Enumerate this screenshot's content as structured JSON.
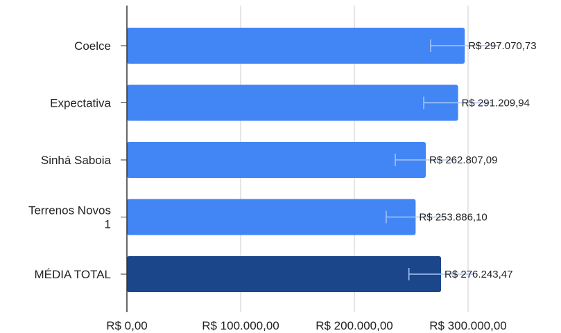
{
  "chart_data": {
    "type": "bar",
    "orientation": "horizontal",
    "title": "",
    "xlabel": "",
    "ylabel": "",
    "categories": [
      [
        "Coelce"
      ],
      [
        "Expectativa"
      ],
      [
        "Sinhá Saboia"
      ],
      [
        "Terrenos Novos",
        "1"
      ],
      [
        "MÉDIA TOTAL"
      ]
    ],
    "values": [
      297070.73,
      291209.94,
      262807.09,
      253886.1,
      276243.47
    ],
    "value_labels": [
      "R$ 297.070,73",
      "R$ 291.209,94",
      "R$ 262.807,09",
      "R$ 253.886,10",
      "R$ 276.243,47"
    ],
    "error_low": [
      267000,
      261000,
      236000,
      228000,
      248000
    ],
    "colors": [
      "#4285f4",
      "#4285f4",
      "#4285f4",
      "#4285f4",
      "#1b468a"
    ],
    "error_bar_color": "#a9c7f5",
    "xlim": [
      0,
      300000
    ],
    "xticks": [
      0,
      100000,
      200000,
      300000
    ],
    "xtick_labels": [
      "R$ 0,00",
      "R$ 100.000,00",
      "R$ 200.000,00",
      "R$ 300.000,00"
    ],
    "grid": true,
    "legend": "none"
  }
}
